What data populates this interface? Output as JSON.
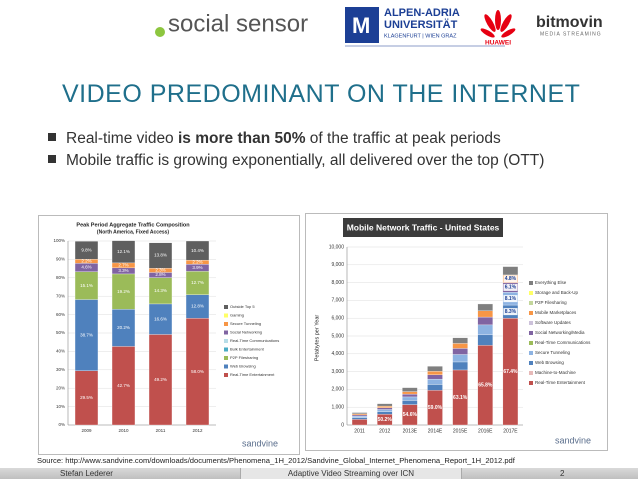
{
  "header": {
    "logo_social": "social sensor",
    "logo_aau_1": "ALPEN-ADRIA",
    "logo_aau_2": "UNIVERSITÄT",
    "logo_aau_3": "KLAGENFURT | WIEN GRAZ",
    "logo_huawei": "HUAWEI",
    "logo_bitmovin": "bitmovin",
    "logo_bitmovin_sub": "MEDIA STREAMING"
  },
  "title": "VIDEO PREDOMINANT ON THE INTERNET",
  "bullets": [
    [
      "Real-time video ",
      "is more than 50%",
      " of the traffic at peak periods"
    ],
    [
      "Mobile traffic is growing exponentially, all delivered over the top (OTT)"
    ]
  ],
  "chart_data": [
    {
      "type": "bar",
      "title": "Peak Period Aggregate Traffic Composition",
      "subtitle": "(North America, Fixed Access)",
      "brand": "sandvine",
      "categories": [
        "2009",
        "2010",
        "2011",
        "2012"
      ],
      "ylim": [
        0,
        100
      ],
      "yticks": [
        {
          "value": 0,
          "label": "0%"
        },
        {
          "value": 10,
          "label": "10%"
        },
        {
          "value": 20,
          "label": "20%"
        },
        {
          "value": 30,
          "label": "30%"
        },
        {
          "value": 40,
          "label": "40%"
        },
        {
          "value": 50,
          "label": "50%"
        },
        {
          "value": 60,
          "label": "60%"
        },
        {
          "value": 70,
          "label": "70%"
        },
        {
          "value": 80,
          "label": "80%"
        },
        {
          "value": 90,
          "label": "90%"
        },
        {
          "value": 100,
          "label": "100%"
        }
      ],
      "grid": true,
      "series": [
        {
          "name": "Real-Time Entertainment",
          "color": "#c0504d",
          "values": [
            29.5,
            42.7,
            49.2,
            58.0
          ],
          "value_labels": [
            "29.5%",
            "42.7%",
            "49.2%",
            "58.0%"
          ]
        },
        {
          "name": "Web Browsing",
          "color": "#4f81bd",
          "values": [
            38.7,
            20.2,
            16.6,
            12.8
          ],
          "value_labels": [
            "38.7%",
            "20.2%",
            "16.6%",
            "12.8%"
          ]
        },
        {
          "name": "P2P Filesharing",
          "color": "#9bbb59",
          "values": [
            15.1,
            19.2,
            14.3,
            12.7
          ],
          "value_labels": [
            "15.1%",
            "19.2%",
            "14.3%",
            "12.7%"
          ]
        },
        {
          "name": "Bulk Entertainment",
          "color": "#4bacc6",
          "values": [
            null,
            null,
            null,
            null
          ]
        },
        {
          "name": "Real-Time Communications",
          "color": "#b7dde8",
          "values": [
            null,
            null,
            null,
            null
          ]
        },
        {
          "name": "Social Networking",
          "color": "#8064a2",
          "values": [
            4.6,
            3.3,
            2.8,
            3.9
          ],
          "value_labels": [
            "4.6%",
            "3.3%",
            "2.8%",
            "3.9%"
          ]
        },
        {
          "name": "Secure Tunneling",
          "color": "#f79646",
          "values": [
            2.2,
            2.7,
            2.3,
            2.2
          ],
          "value_labels": [
            "2.2%",
            "2.7%",
            "2.3%",
            "2.2%"
          ]
        },
        {
          "name": "Gaming",
          "color": "#ffff66",
          "values": [
            null,
            null,
            null,
            null
          ]
        },
        {
          "name": "Outside Top 5",
          "color": "#5f5f5f",
          "values": [
            9.8,
            12.1,
            13.8,
            10.4
          ],
          "value_labels": [
            "9.8%",
            "12.1%",
            "13.8%",
            "10.4%"
          ]
        }
      ]
    },
    {
      "type": "bar",
      "title": "Mobile Network Traffic - United States",
      "y_label": "Petabytes per Year",
      "brand": "sandvine",
      "categories": [
        "2011",
        "2012",
        "2013E",
        "2014E",
        "2015E",
        "2016E",
        "2017E"
      ],
      "ylim": [
        0,
        10000
      ],
      "yticks": [
        0,
        {
          "value": 1000,
          "label": "1,000"
        },
        {
          "value": 2000,
          "label": "2,000"
        },
        {
          "value": 3000,
          "label": "3,000"
        },
        {
          "value": 4000,
          "label": "4,000"
        },
        {
          "value": 5000,
          "label": "5,000"
        },
        {
          "value": 6000,
          "label": "6,000"
        },
        {
          "value": 7000,
          "label": "7,000"
        },
        {
          "value": 8000,
          "label": "8,000"
        },
        {
          "value": 9000,
          "label": "9,000"
        },
        {
          "value": 10000,
          "label": "10,000"
        }
      ],
      "grid": true,
      "series": [
        {
          "name": "Real-Time Entertainment",
          "color": "#c0504d",
          "values": [
            315,
            602,
            1147,
            1947,
            3092,
            4474,
            6000
          ],
          "share_labels": [
            null,
            "50.2%",
            "54.6%",
            "59.0%",
            "63.1%",
            "65.8%",
            "67.4%"
          ]
        },
        {
          "name": "Machine-to-Machine",
          "color": "#e6b9b8",
          "values": [
            null,
            null,
            null,
            null,
            null,
            null,
            null
          ]
        },
        {
          "name": "Web Browsing",
          "color": "#4f81bd",
          "values": [
            100,
            150,
            230,
            330,
            450,
            590,
            740
          ],
          "share_labels": [
            null,
            null,
            null,
            null,
            null,
            null,
            "8.3%"
          ]
        },
        {
          "name": "Secure Tunneling",
          "color": "#8db3e2",
          "values": [
            80,
            120,
            200,
            300,
            420,
            560,
            720
          ],
          "share_labels": [
            null,
            null,
            null,
            null,
            null,
            null,
            "8.1%"
          ]
        },
        {
          "name": "Real-Time Communications",
          "color": "#9bbb59",
          "values": [
            null,
            null,
            null,
            null,
            null,
            null,
            null
          ]
        },
        {
          "name": "Social Networking/Media",
          "color": "#8064a2",
          "values": [
            70,
            100,
            160,
            240,
            340,
            440,
            540
          ],
          "share_labels": [
            null,
            null,
            null,
            null,
            null,
            null,
            "6.1%"
          ]
        },
        {
          "name": "Software Updates",
          "color": "#ccc1da",
          "values": [
            null,
            null,
            null,
            null,
            null,
            null,
            null
          ]
        },
        {
          "name": "Mobile Marketplaces",
          "color": "#f79646",
          "values": [
            60,
            90,
            140,
            200,
            280,
            350,
            430
          ],
          "share_labels": [
            null,
            null,
            null,
            null,
            null,
            null,
            "4.8%"
          ]
        },
        {
          "name": "P2P Filesharing",
          "color": "#c3d69b",
          "values": [
            null,
            null,
            null,
            null,
            null,
            null,
            null
          ]
        },
        {
          "name": "Storage and Back-Up",
          "color": "#ffff66",
          "values": [
            null,
            null,
            null,
            null,
            null,
            null,
            null
          ]
        },
        {
          "name": "Everything Else",
          "color": "#7f7f7f",
          "values": [
            75,
            138,
            223,
            283,
            318,
            386,
            470
          ]
        }
      ]
    }
  ],
  "source": "Source: http://www.sandvine.com/downloads/documents/Phenomena_1H_2012/Sandvine_Global_Internet_Phenomena_Report_1H_2012.pdf",
  "footer": {
    "author": "Stefan Lederer",
    "talk": "Adaptive Video Streaming over ICN",
    "page": 2
  }
}
